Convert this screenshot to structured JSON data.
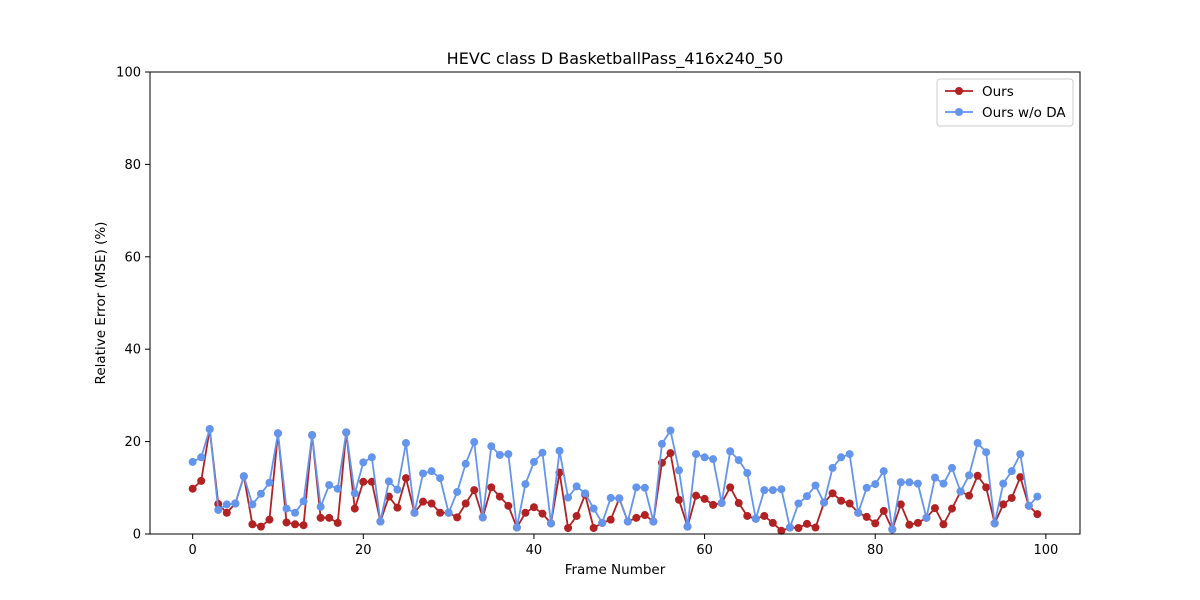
{
  "chart_data": {
    "type": "line",
    "title": "HEVC class D BasketballPass_416x240_50",
    "xlabel": "Frame Number",
    "ylabel": "Relative Error (MSE) (%)",
    "xlim": [
      -5,
      104
    ],
    "ylim": [
      0,
      100
    ],
    "xticks": [
      0,
      20,
      40,
      60,
      80,
      100
    ],
    "yticks": [
      0,
      20,
      40,
      60,
      80,
      100
    ],
    "grid": false,
    "legend_position": "top-right",
    "x": [
      0,
      1,
      2,
      3,
      4,
      5,
      6,
      7,
      8,
      9,
      10,
      11,
      12,
      13,
      14,
      15,
      16,
      17,
      18,
      19,
      20,
      21,
      22,
      23,
      24,
      25,
      26,
      27,
      28,
      29,
      30,
      31,
      32,
      33,
      34,
      35,
      36,
      37,
      38,
      39,
      40,
      41,
      42,
      43,
      44,
      45,
      46,
      47,
      48,
      49,
      50,
      51,
      52,
      53,
      54,
      55,
      56,
      57,
      58,
      59,
      60,
      61,
      62,
      63,
      64,
      65,
      66,
      67,
      68,
      69,
      70,
      71,
      72,
      73,
      74,
      75,
      76,
      77,
      78,
      79,
      80,
      81,
      82,
      83,
      84,
      85,
      86,
      87,
      88,
      89,
      90,
      91,
      92,
      93,
      94,
      95,
      96,
      97,
      98,
      99
    ],
    "series": [
      {
        "name": "Ours",
        "color": "#b22222",
        "values": [
          9.8,
          11.5,
          22.7,
          6.5,
          4.6,
          6.6,
          12.5,
          2.1,
          1.6,
          3.1,
          21.8,
          2.5,
          2.1,
          1.9,
          21.4,
          3.5,
          3.5,
          2.4,
          22.0,
          5.5,
          11.3,
          11.3,
          2.7,
          8.1,
          5.7,
          12.1,
          4.6,
          7.0,
          6.6,
          4.6,
          4.6,
          3.6,
          6.6,
          9.5,
          3.6,
          10.1,
          8.1,
          6.1,
          1.4,
          4.6,
          5.8,
          4.4,
          2.3,
          13.3,
          1.3,
          3.9,
          8.5,
          1.3,
          2.4,
          3.1,
          7.7,
          2.7,
          3.5,
          4.1,
          2.7,
          15.4,
          17.5,
          7.4,
          1.6,
          8.3,
          7.6,
          6.3,
          6.7,
          10.1,
          6.7,
          3.9,
          3.3,
          3.9,
          2.4,
          0.7,
          1.4,
          1.3,
          2.2,
          1.4,
          6.8,
          8.8,
          7.2,
          6.6,
          4.6,
          3.7,
          2.3,
          5.0,
          1.0,
          6.4,
          2.0,
          2.4,
          3.5,
          5.6,
          2.1,
          5.5,
          9.2,
          8.3,
          12.6,
          10.1,
          2.3,
          6.4,
          7.8,
          12.3,
          6.1,
          4.3
        ]
      },
      {
        "name": "Ours w/o DA",
        "color": "#6495ed",
        "values": [
          15.6,
          16.6,
          22.7,
          5.2,
          6.4,
          6.6,
          12.5,
          6.4,
          8.7,
          11.1,
          21.8,
          5.5,
          4.6,
          7.1,
          21.4,
          5.9,
          10.6,
          9.8,
          22.0,
          8.8,
          15.5,
          16.6,
          2.7,
          11.4,
          9.6,
          19.7,
          4.6,
          13.1,
          13.6,
          12.1,
          4.6,
          9.1,
          15.2,
          19.9,
          3.6,
          19.0,
          17.1,
          17.3,
          1.4,
          10.8,
          15.6,
          17.6,
          2.3,
          18.0,
          7.9,
          10.3,
          8.8,
          5.5,
          2.4,
          7.8,
          7.7,
          2.7,
          10.1,
          10.0,
          2.7,
          19.5,
          22.4,
          13.8,
          1.6,
          17.3,
          16.6,
          16.2,
          6.7,
          17.9,
          16.0,
          13.2,
          3.3,
          9.5,
          9.5,
          9.7,
          1.4,
          6.6,
          8.2,
          10.5,
          6.8,
          14.3,
          16.6,
          17.3,
          4.6,
          10.0,
          10.8,
          13.6,
          1.0,
          11.2,
          11.2,
          10.9,
          3.5,
          12.2,
          10.9,
          14.3,
          9.2,
          12.7,
          19.7,
          17.7,
          2.3,
          10.9,
          13.6,
          17.3,
          6.1,
          8.1
        ]
      }
    ]
  }
}
